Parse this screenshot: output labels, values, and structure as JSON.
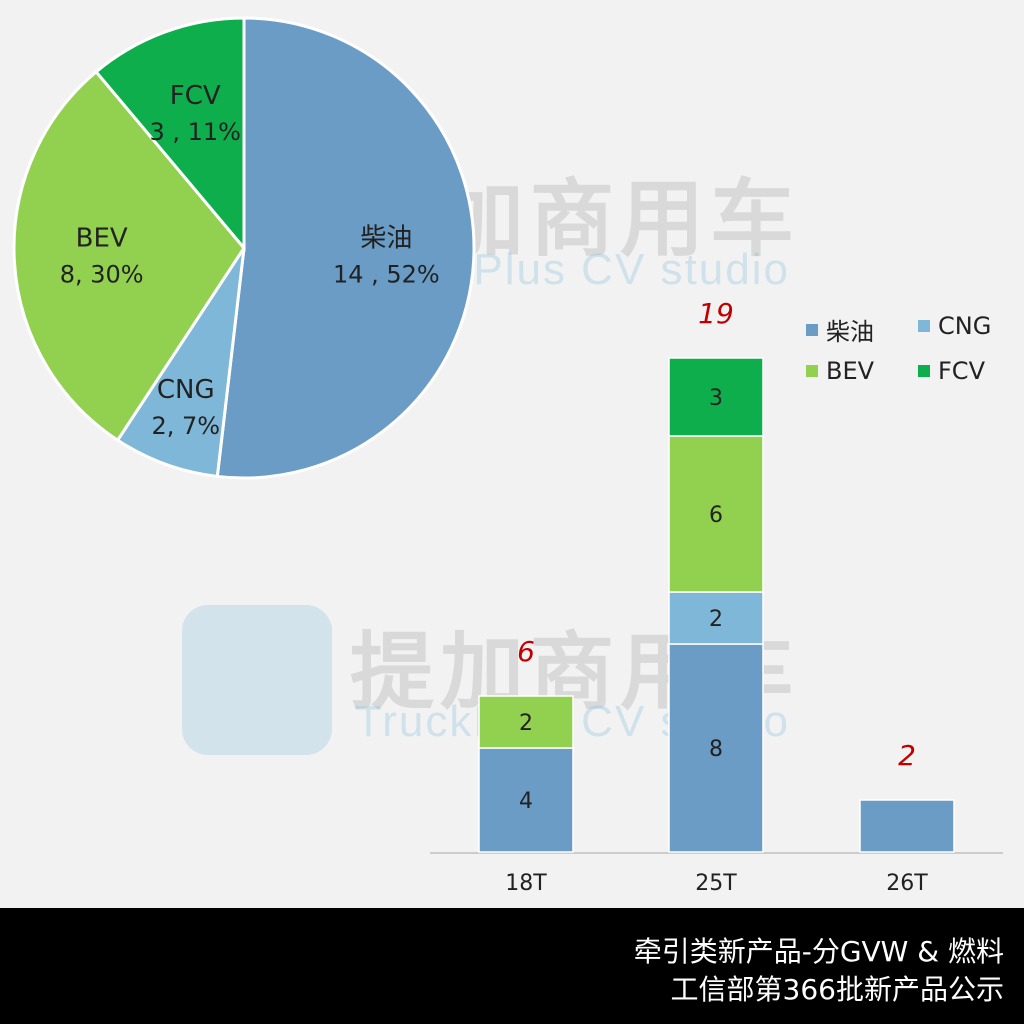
{
  "watermark": {
    "brand_cn": "提加商用车",
    "brand_en": "TruckPlus CV studio"
  },
  "chart_data": [
    {
      "type": "pie",
      "slices": [
        {
          "name": "柴油",
          "value": 14,
          "percent": "52%",
          "label_line1": "柴油",
          "label_line2": "14 , 52%",
          "color": "#6a9cc6"
        },
        {
          "name": "CNG",
          "value": 2,
          "percent": "7%",
          "label_line1": "CNG",
          "label_line2": "2, 7%",
          "color": "#7fb7d8"
        },
        {
          "name": "BEV",
          "value": 8,
          "percent": "30%",
          "label_line1": "BEV",
          "label_line2": "8, 30%",
          "color": "#92d050"
        },
        {
          "name": "FCV",
          "value": 3,
          "percent": "11%",
          "label_line1": "FCV",
          "label_line2": "3 , 11%",
          "color": "#0fae4c"
        }
      ]
    },
    {
      "type": "bar",
      "stacked": true,
      "categories": [
        "18T",
        "25T",
        "26T"
      ],
      "series": [
        {
          "name": "柴油",
          "values": [
            4,
            8,
            2
          ],
          "color": "#6a9cc6",
          "show_labels": [
            true,
            true,
            false
          ]
        },
        {
          "name": "CNG",
          "values": [
            0,
            2,
            0
          ],
          "color": "#7fb7d8",
          "show_labels": [
            false,
            true,
            false
          ]
        },
        {
          "name": "BEV",
          "values": [
            2,
            6,
            0
          ],
          "color": "#92d050",
          "show_labels": [
            true,
            true,
            false
          ]
        },
        {
          "name": "FCV",
          "values": [
            0,
            3,
            0
          ],
          "color": "#0fae4c",
          "show_labels": [
            false,
            true,
            false
          ]
        }
      ],
      "totals": [
        "6",
        "19",
        "2"
      ],
      "total_color": "#c00000",
      "legend": [
        "柴油",
        "CNG",
        "BEV",
        "FCV"
      ],
      "legend_position": "top-right",
      "ylim": [
        0,
        19
      ],
      "grid": false
    }
  ],
  "footer": {
    "line1": "牵引类新产品-分GVW  & 燃料",
    "line2": "工信部第366批新产品公示"
  }
}
